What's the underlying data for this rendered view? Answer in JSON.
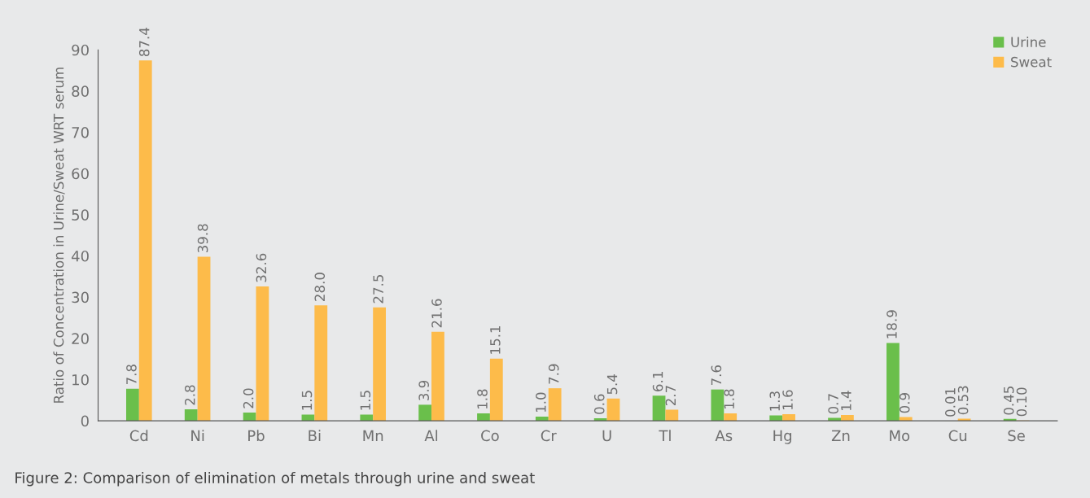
{
  "chart_data": {
    "type": "bar",
    "categories": [
      "Cd",
      "Ni",
      "Pb",
      "Bi",
      "Mn",
      "Al",
      "Co",
      "Cr",
      "U",
      "Tl",
      "As",
      "Hg",
      "Zn",
      "Mo",
      "Cu",
      "Se"
    ],
    "series": [
      {
        "name": "Urine",
        "color": "#6abf4b",
        "values": [
          7.8,
          2.8,
          2.0,
          1.5,
          1.5,
          3.9,
          1.8,
          1.0,
          0.6,
          6.1,
          7.6,
          1.3,
          0.7,
          18.9,
          0.01,
          0.45
        ],
        "value_labels": [
          "7.8",
          "2.8",
          "2.0",
          "1.5",
          "1.5",
          "3.9",
          "1.8",
          "1.0",
          "0.6",
          "6.1",
          "7.6",
          "1.3",
          "0.7",
          "18.9",
          "0.01",
          "0.45"
        ]
      },
      {
        "name": "Sweat",
        "color": "#fdbb4a",
        "values": [
          87.4,
          39.8,
          32.6,
          28.0,
          27.5,
          21.6,
          15.1,
          7.9,
          5.4,
          2.7,
          1.8,
          1.6,
          1.4,
          0.9,
          0.53,
          0.1
        ],
        "value_labels": [
          "87.4",
          "39.8",
          "32.6",
          "28.0",
          "27.5",
          "21.6",
          "15.1",
          "7.9",
          "5.4",
          "2.7",
          "1.8",
          "1.6",
          "1.4",
          "0.9",
          "0.53",
          "0.10"
        ]
      }
    ],
    "ylabel": "Ratio of Concentration in Urine/Sweat WRT serum",
    "ylim": [
      0,
      90
    ],
    "yticks": [
      0,
      10,
      20,
      30,
      40,
      50,
      60,
      70,
      80,
      90
    ],
    "grid": false,
    "legend": "top right",
    "annotations": [
      "Figure 2: Comparison of elimination of metals through urine and sweat"
    ]
  }
}
